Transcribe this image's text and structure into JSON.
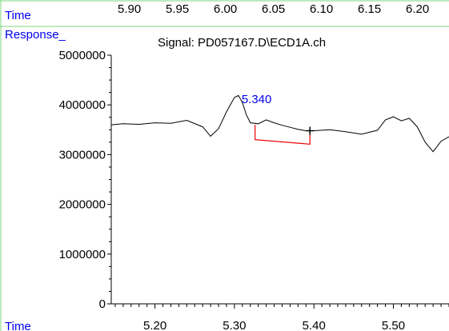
{
  "header": {
    "time_label": "Time",
    "time_ticks": [
      "5.90",
      "5.95",
      "6.00",
      "6.05",
      "6.10",
      "6.15",
      "6.20"
    ]
  },
  "chart_data": {
    "type": "line",
    "title": "Signal: PD057167.D\\ECD1A.ch",
    "ylabel": "Response_",
    "xlabel": "Time",
    "xlim": [
      5.145,
      5.57
    ],
    "ylim": [
      0,
      5000000
    ],
    "x_ticks": [
      "5.20",
      "5.30",
      "5.40",
      "5.50"
    ],
    "y_ticks": [
      "0",
      "1000000",
      "2000000",
      "3000000",
      "4000000",
      "5000000"
    ],
    "series": [
      {
        "x": [
          5.145,
          5.16,
          5.18,
          5.2,
          5.22,
          5.24,
          5.26,
          5.27,
          5.28,
          5.29,
          5.3,
          5.305,
          5.31,
          5.315,
          5.32,
          5.33,
          5.34,
          5.35,
          5.36,
          5.37,
          5.38,
          5.39,
          5.4,
          5.42,
          5.44,
          5.46,
          5.48,
          5.49,
          5.5,
          5.51,
          5.52,
          5.53,
          5.54,
          5.55,
          5.56,
          5.57
        ],
        "y": [
          3600000,
          3620000,
          3610000,
          3640000,
          3630000,
          3690000,
          3560000,
          3370000,
          3520000,
          3860000,
          4150000,
          4190000,
          4050000,
          3800000,
          3640000,
          3620000,
          3700000,
          3640000,
          3590000,
          3550000,
          3510000,
          3480000,
          3480000,
          3500000,
          3460000,
          3410000,
          3490000,
          3700000,
          3760000,
          3680000,
          3730000,
          3560000,
          3250000,
          3060000,
          3270000,
          3360000
        ]
      }
    ],
    "peak_label": "5.340",
    "peak_color": "#0000ee",
    "baseline_color": "#ee0000",
    "baseline": {
      "x1": 5.326,
      "y1": 3300000,
      "x2": 5.395,
      "y2": 3210000
    },
    "marker": {
      "x": 5.395,
      "y": 3480000
    }
  }
}
